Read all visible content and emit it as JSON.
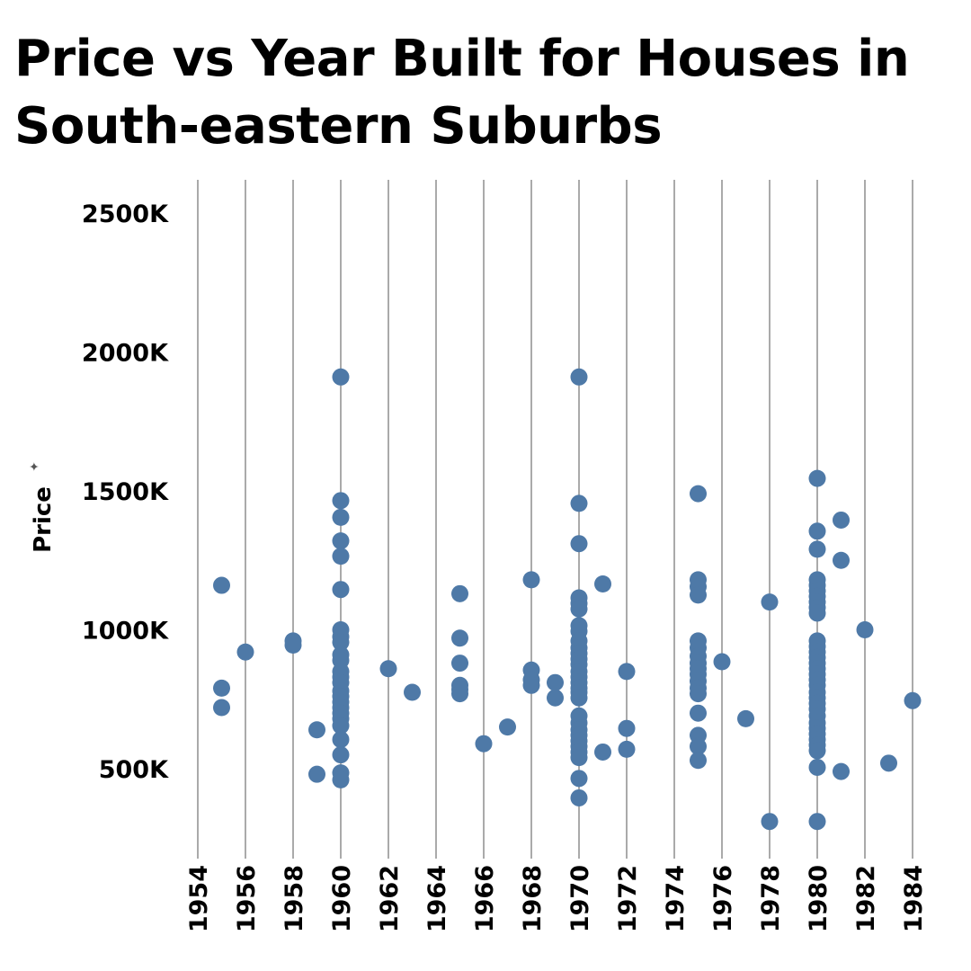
{
  "chart_data": {
    "type": "scatter",
    "title": "Price vs Year Built for Houses in South-eastern  Suburbs",
    "xlabel": "",
    "ylabel": "Price",
    "pin_icon": "pin-icon",
    "xlim": [
      1953,
      1985
    ],
    "ylim": [
      250,
      2600
    ],
    "x_ticks": [
      1954,
      1956,
      1958,
      1960,
      1962,
      1964,
      1966,
      1968,
      1970,
      1972,
      1974,
      1976,
      1978,
      1980,
      1982,
      1984
    ],
    "y_ticks": [
      {
        "value": 500,
        "label": "500K"
      },
      {
        "value": 1000,
        "label": "1000K"
      },
      {
        "value": 1500,
        "label": "1500K"
      },
      {
        "value": 2000,
        "label": "2000K"
      },
      {
        "value": 2500,
        "label": "2500K"
      }
    ],
    "y_unit": "K",
    "grid": {
      "vertical": true,
      "horizontal": false
    },
    "point_color": "#4E79A7",
    "gridline_color": "#AAAAAA",
    "points": [
      {
        "x": 1955,
        "y": 1160
      },
      {
        "x": 1955,
        "y": 790
      },
      {
        "x": 1955,
        "y": 720
      },
      {
        "x": 1956,
        "y": 920
      },
      {
        "x": 1958,
        "y": 960
      },
      {
        "x": 1958,
        "y": 945
      },
      {
        "x": 1959,
        "y": 640
      },
      {
        "x": 1959,
        "y": 480
      },
      {
        "x": 1960,
        "y": 1910
      },
      {
        "x": 1960,
        "y": 1465
      },
      {
        "x": 1960,
        "y": 1405
      },
      {
        "x": 1960,
        "y": 1320
      },
      {
        "x": 1960,
        "y": 1265
      },
      {
        "x": 1960,
        "y": 1145
      },
      {
        "x": 1960,
        "y": 1000
      },
      {
        "x": 1960,
        "y": 975
      },
      {
        "x": 1960,
        "y": 955
      },
      {
        "x": 1960,
        "y": 910
      },
      {
        "x": 1960,
        "y": 890
      },
      {
        "x": 1960,
        "y": 850
      },
      {
        "x": 1960,
        "y": 830
      },
      {
        "x": 1960,
        "y": 810
      },
      {
        "x": 1960,
        "y": 780
      },
      {
        "x": 1960,
        "y": 760
      },
      {
        "x": 1960,
        "y": 740
      },
      {
        "x": 1960,
        "y": 720
      },
      {
        "x": 1960,
        "y": 700
      },
      {
        "x": 1960,
        "y": 680
      },
      {
        "x": 1960,
        "y": 655
      },
      {
        "x": 1960,
        "y": 605
      },
      {
        "x": 1960,
        "y": 550
      },
      {
        "x": 1960,
        "y": 485
      },
      {
        "x": 1960,
        "y": 460
      },
      {
        "x": 1962,
        "y": 860
      },
      {
        "x": 1963,
        "y": 775
      },
      {
        "x": 1965,
        "y": 1130
      },
      {
        "x": 1965,
        "y": 970
      },
      {
        "x": 1965,
        "y": 880
      },
      {
        "x": 1965,
        "y": 800
      },
      {
        "x": 1965,
        "y": 785
      },
      {
        "x": 1965,
        "y": 770
      },
      {
        "x": 1966,
        "y": 590
      },
      {
        "x": 1967,
        "y": 650
      },
      {
        "x": 1968,
        "y": 1180
      },
      {
        "x": 1968,
        "y": 855
      },
      {
        "x": 1968,
        "y": 820
      },
      {
        "x": 1968,
        "y": 800
      },
      {
        "x": 1969,
        "y": 810
      },
      {
        "x": 1969,
        "y": 755
      },
      {
        "x": 1970,
        "y": 1910
      },
      {
        "x": 1970,
        "y": 1455
      },
      {
        "x": 1970,
        "y": 1310
      },
      {
        "x": 1970,
        "y": 1115
      },
      {
        "x": 1970,
        "y": 1095
      },
      {
        "x": 1970,
        "y": 1075
      },
      {
        "x": 1970,
        "y": 1015
      },
      {
        "x": 1970,
        "y": 995
      },
      {
        "x": 1970,
        "y": 960
      },
      {
        "x": 1970,
        "y": 935
      },
      {
        "x": 1970,
        "y": 915
      },
      {
        "x": 1970,
        "y": 895
      },
      {
        "x": 1970,
        "y": 875
      },
      {
        "x": 1970,
        "y": 850
      },
      {
        "x": 1970,
        "y": 830
      },
      {
        "x": 1970,
        "y": 810
      },
      {
        "x": 1970,
        "y": 790
      },
      {
        "x": 1970,
        "y": 775
      },
      {
        "x": 1970,
        "y": 755
      },
      {
        "x": 1970,
        "y": 690
      },
      {
        "x": 1970,
        "y": 665
      },
      {
        "x": 1970,
        "y": 640
      },
      {
        "x": 1970,
        "y": 620
      },
      {
        "x": 1970,
        "y": 600
      },
      {
        "x": 1970,
        "y": 580
      },
      {
        "x": 1970,
        "y": 560
      },
      {
        "x": 1970,
        "y": 540
      },
      {
        "x": 1970,
        "y": 465
      },
      {
        "x": 1970,
        "y": 395
      },
      {
        "x": 1971,
        "y": 1165
      },
      {
        "x": 1971,
        "y": 560
      },
      {
        "x": 1972,
        "y": 850
      },
      {
        "x": 1972,
        "y": 645
      },
      {
        "x": 1972,
        "y": 570
      },
      {
        "x": 1975,
        "y": 1490
      },
      {
        "x": 1975,
        "y": 1180
      },
      {
        "x": 1975,
        "y": 1155
      },
      {
        "x": 1975,
        "y": 1125
      },
      {
        "x": 1975,
        "y": 960
      },
      {
        "x": 1975,
        "y": 935
      },
      {
        "x": 1975,
        "y": 905
      },
      {
        "x": 1975,
        "y": 880
      },
      {
        "x": 1975,
        "y": 860
      },
      {
        "x": 1975,
        "y": 840
      },
      {
        "x": 1975,
        "y": 815
      },
      {
        "x": 1975,
        "y": 790
      },
      {
        "x": 1975,
        "y": 770
      },
      {
        "x": 1975,
        "y": 700
      },
      {
        "x": 1975,
        "y": 620
      },
      {
        "x": 1975,
        "y": 580
      },
      {
        "x": 1975,
        "y": 530
      },
      {
        "x": 1976,
        "y": 885
      },
      {
        "x": 1977,
        "y": 680
      },
      {
        "x": 1978,
        "y": 1100
      },
      {
        "x": 1978,
        "y": 310
      },
      {
        "x": 1980,
        "y": 1545
      },
      {
        "x": 1980,
        "y": 1355
      },
      {
        "x": 1980,
        "y": 1290
      },
      {
        "x": 1980,
        "y": 1180
      },
      {
        "x": 1980,
        "y": 1160
      },
      {
        "x": 1980,
        "y": 1140
      },
      {
        "x": 1980,
        "y": 1120
      },
      {
        "x": 1980,
        "y": 1100
      },
      {
        "x": 1980,
        "y": 1080
      },
      {
        "x": 1980,
        "y": 1060
      },
      {
        "x": 1980,
        "y": 960
      },
      {
        "x": 1980,
        "y": 940
      },
      {
        "x": 1980,
        "y": 920
      },
      {
        "x": 1980,
        "y": 900
      },
      {
        "x": 1980,
        "y": 880
      },
      {
        "x": 1980,
        "y": 860
      },
      {
        "x": 1980,
        "y": 840
      },
      {
        "x": 1980,
        "y": 820
      },
      {
        "x": 1980,
        "y": 800
      },
      {
        "x": 1980,
        "y": 775
      },
      {
        "x": 1980,
        "y": 755
      },
      {
        "x": 1980,
        "y": 735
      },
      {
        "x": 1980,
        "y": 715
      },
      {
        "x": 1980,
        "y": 690
      },
      {
        "x": 1980,
        "y": 665
      },
      {
        "x": 1980,
        "y": 645
      },
      {
        "x": 1980,
        "y": 625
      },
      {
        "x": 1980,
        "y": 605
      },
      {
        "x": 1980,
        "y": 585
      },
      {
        "x": 1980,
        "y": 565
      },
      {
        "x": 1980,
        "y": 505
      },
      {
        "x": 1980,
        "y": 310
      },
      {
        "x": 1981,
        "y": 1395
      },
      {
        "x": 1981,
        "y": 1250
      },
      {
        "x": 1981,
        "y": 490
      },
      {
        "x": 1982,
        "y": 1000
      },
      {
        "x": 1983,
        "y": 520
      },
      {
        "x": 1984,
        "y": 745
      }
    ]
  }
}
